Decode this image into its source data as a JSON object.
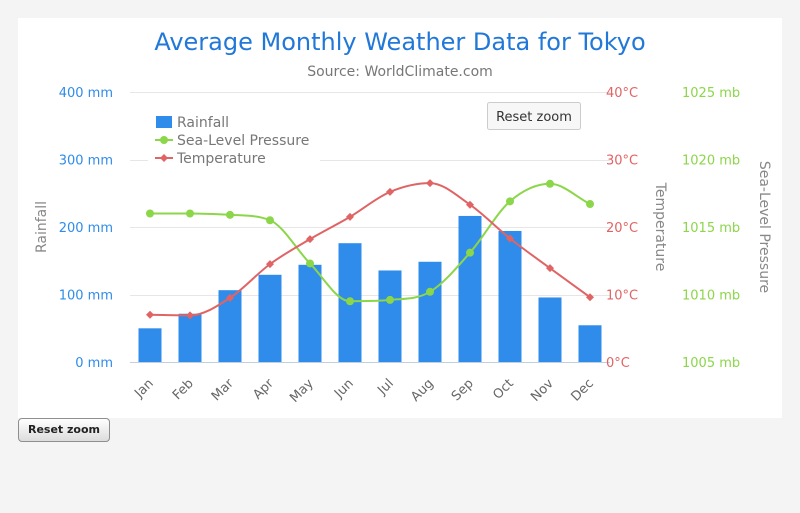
{
  "page": {
    "reset_zoom_label": "Reset zoom"
  },
  "chart_data": {
    "type": "bar",
    "title": "Average Monthly Weather Data for Tokyo",
    "subtitle": "Source: WorldClimate.com",
    "categories": [
      "Jan",
      "Feb",
      "Mar",
      "Apr",
      "May",
      "Jun",
      "Jul",
      "Aug",
      "Sep",
      "Oct",
      "Nov",
      "Dec"
    ],
    "reset_zoom_label": "Reset zoom",
    "legend_position": "top-left",
    "grid": true,
    "series": [
      {
        "name": "Rainfall",
        "type": "bar",
        "axis": "rainfall",
        "color": "#2f8ceb",
        "values": [
          49.9,
          71.5,
          106.4,
          129.2,
          144.0,
          176.0,
          135.6,
          148.5,
          216.4,
          194.1,
          95.6,
          54.4
        ]
      },
      {
        "name": "Sea-Level Pressure",
        "type": "spline",
        "axis": "pressure",
        "color": "#8cd64a",
        "values": [
          1016,
          1016,
          1015.9,
          1015.5,
          1012.3,
          1009.5,
          1009.6,
          1010.2,
          1013.1,
          1016.9,
          1018.2,
          1016.7
        ]
      },
      {
        "name": "Temperature",
        "type": "spline",
        "axis": "temperature",
        "color": "#e06464",
        "values": [
          7.0,
          6.9,
          9.5,
          14.5,
          18.2,
          21.5,
          25.2,
          26.5,
          23.3,
          18.3,
          13.9,
          9.6
        ]
      }
    ],
    "axes": {
      "rainfall": {
        "title": "Rainfall",
        "position": "left",
        "color": "#2f8ceb",
        "min": 0,
        "max": 400,
        "ticks": [
          0,
          100,
          200,
          300,
          400
        ],
        "tick_labels": [
          "0 mm",
          "100 mm",
          "200 mm",
          "300 mm",
          "400 mm"
        ]
      },
      "temperature": {
        "title": "Temperature",
        "position": "right",
        "color": "#e06464",
        "min": 0,
        "max": 40,
        "ticks": [
          0,
          10,
          20,
          30,
          40
        ],
        "tick_labels": [
          "0°C",
          "10°C",
          "20°C",
          "30°C",
          "40°C"
        ]
      },
      "pressure": {
        "title": "Sea-Level Pressure",
        "position": "right",
        "color": "#8cd64a",
        "min": 1005,
        "max": 1025,
        "ticks": [
          1005,
          1010,
          1015,
          1020,
          1025
        ],
        "tick_labels": [
          "1005 mb",
          "1010 mb",
          "1015 mb",
          "1020 mb",
          "1025 mb"
        ]
      }
    }
  }
}
